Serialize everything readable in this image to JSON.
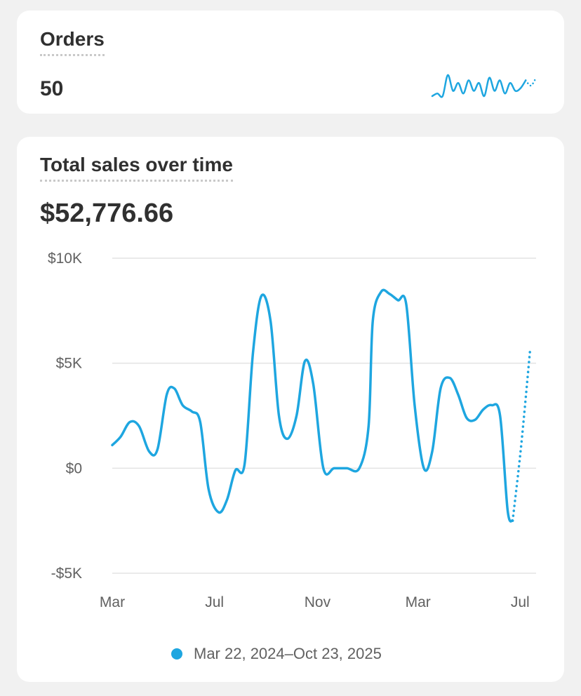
{
  "colors": {
    "accent": "#1ea6e0",
    "grid": "#e3e3e3",
    "text": "#303030",
    "muted": "#616161"
  },
  "orders": {
    "title": "Orders",
    "value": "50",
    "sparkline": [
      1,
      2,
      1,
      9,
      3,
      6,
      2,
      7,
      3,
      6,
      1,
      8,
      3,
      7,
      2,
      6,
      3,
      4,
      7,
      5,
      8
    ]
  },
  "sales": {
    "title": "Total sales over time",
    "value": "$52,776.66",
    "legend": "Mar 22, 2024–Oct 23, 2025"
  },
  "chart_data": {
    "type": "line",
    "title": "Total sales over time",
    "xlabel": "",
    "ylabel": "",
    "ylim": [
      -5000,
      10000
    ],
    "y_ticks": [
      {
        "value": 10000,
        "label": "$10K"
      },
      {
        "value": 5000,
        "label": "$5K"
      },
      {
        "value": 0,
        "label": "$0"
      },
      {
        "value": -5000,
        "label": "-$5K"
      }
    ],
    "x_ticks": [
      {
        "value": "2024-03-01",
        "label": "Mar"
      },
      {
        "value": "2024-07-01",
        "label": "Jul"
      },
      {
        "value": "2024-11-01",
        "label": "Nov"
      },
      {
        "value": "2025-03-01",
        "label": "Mar"
      },
      {
        "value": "2025-07-01",
        "label": "Jul"
      }
    ],
    "grid": true,
    "legend_position": "bottom",
    "series": [
      {
        "name": "Mar 22, 2024–Oct 23, 2025",
        "color": "#1ea6e0",
        "points": [
          [
            "2024-03-01",
            1100
          ],
          [
            "2024-03-11",
            1500
          ],
          [
            "2024-03-22",
            2200
          ],
          [
            "2024-04-02",
            2000
          ],
          [
            "2024-04-14",
            800
          ],
          [
            "2024-04-24",
            900
          ],
          [
            "2024-05-05",
            3500
          ],
          [
            "2024-05-14",
            3800
          ],
          [
            "2024-05-24",
            3000
          ],
          [
            "2024-06-04",
            2700
          ],
          [
            "2024-06-14",
            2200
          ],
          [
            "2024-06-24",
            -1000
          ],
          [
            "2024-07-06",
            -2100
          ],
          [
            "2024-07-16",
            -1500
          ],
          [
            "2024-07-26",
            -100
          ],
          [
            "2024-08-06",
            200
          ],
          [
            "2024-08-16",
            5500
          ],
          [
            "2024-08-26",
            8200
          ],
          [
            "2024-09-06",
            7000
          ],
          [
            "2024-09-16",
            2500
          ],
          [
            "2024-09-26",
            1400
          ],
          [
            "2024-10-07",
            2500
          ],
          [
            "2024-10-17",
            5100
          ],
          [
            "2024-10-27",
            4000
          ],
          [
            "2024-11-08",
            0
          ],
          [
            "2024-11-21",
            0
          ],
          [
            "2024-12-06",
            0
          ],
          [
            "2024-12-21",
            0
          ],
          [
            "2025-01-01",
            2000
          ],
          [
            "2025-01-06",
            7000
          ],
          [
            "2025-01-16",
            8400
          ],
          [
            "2025-01-26",
            8300
          ],
          [
            "2025-02-05",
            8000
          ],
          [
            "2025-02-15",
            7800
          ],
          [
            "2025-02-25",
            3000
          ],
          [
            "2025-03-08",
            0
          ],
          [
            "2025-03-18",
            800
          ],
          [
            "2025-03-28",
            3800
          ],
          [
            "2025-04-08",
            4300
          ],
          [
            "2025-04-18",
            3500
          ],
          [
            "2025-04-28",
            2400
          ],
          [
            "2025-05-08",
            2300
          ],
          [
            "2025-05-18",
            2800
          ],
          [
            "2025-05-28",
            3000
          ],
          [
            "2025-06-07",
            2500
          ],
          [
            "2025-06-16",
            -2000
          ],
          [
            "2025-06-22",
            -2500
          ]
        ]
      },
      {
        "name": "",
        "style": "dotted",
        "color": "#1ea6e0",
        "points": [
          [
            "2025-06-22",
            -2500
          ],
          [
            "2025-07-02",
            1000
          ],
          [
            "2025-07-13",
            5700
          ]
        ]
      }
    ]
  }
}
